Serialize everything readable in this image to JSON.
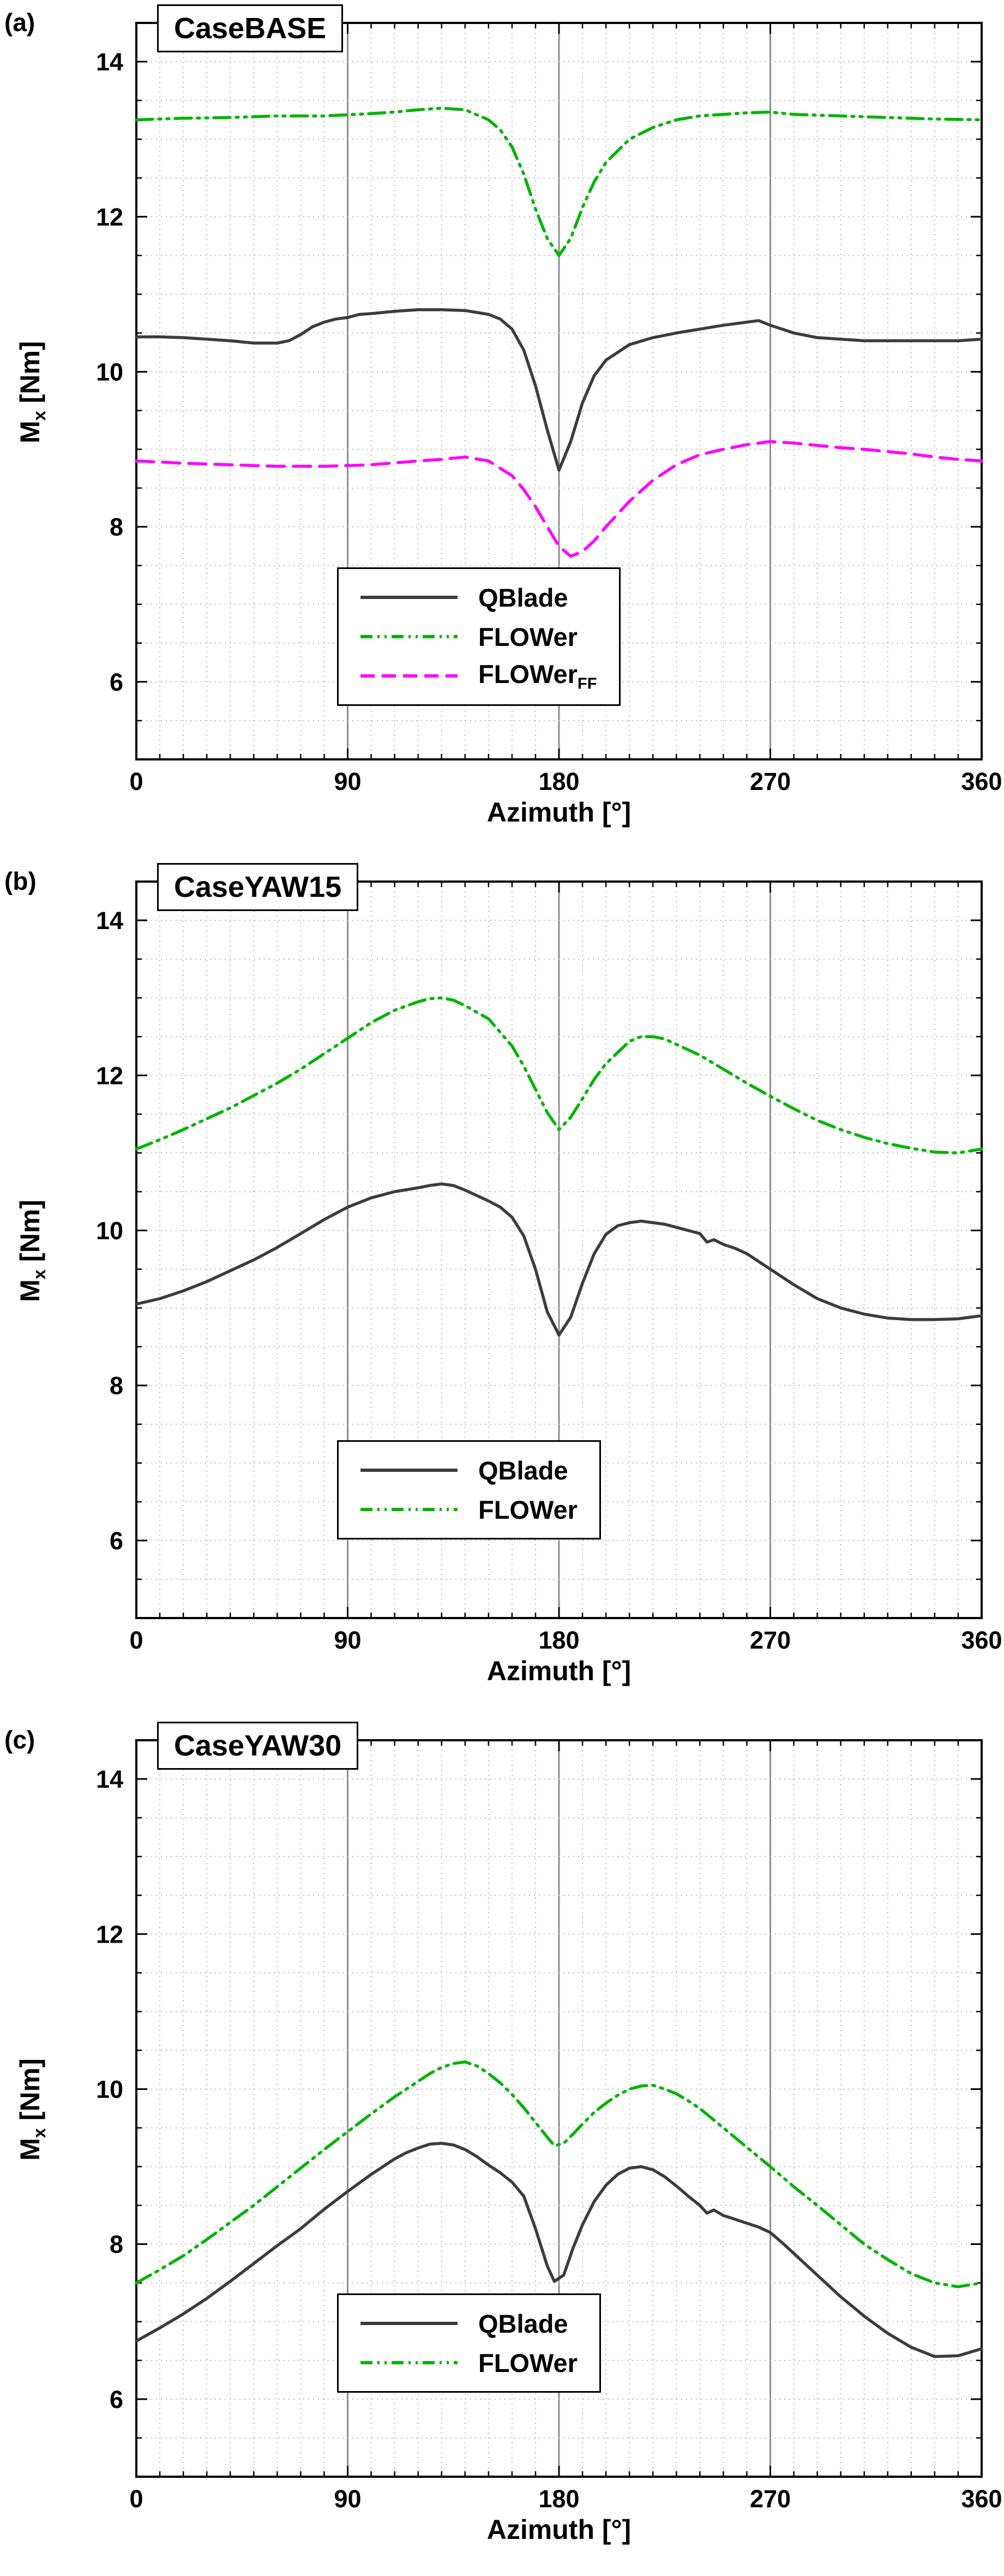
{
  "figure": {
    "xlabel": "Azimuth [°]",
    "ylabel_main": "M",
    "ylabel_sub": "x",
    "ylabel_rest": " [Nm]",
    "panels": [
      {
        "panel_label": "(a)",
        "title": "CaseBASE"
      },
      {
        "panel_label": "(b)",
        "title": "CaseYAW15"
      },
      {
        "panel_label": "(c)",
        "title": "CaseYAW30"
      }
    ],
    "colors": {
      "qblade": "#3c3c3c",
      "flower": "#00b400",
      "flower_ff": "#ff00ff",
      "major_grid": "#8c8c8c",
      "minor_grid": "#bbbbbb",
      "axis": "#000000"
    }
  },
  "chart_data": [
    {
      "type": "line",
      "title": "CaseBASE",
      "xlabel": "Azimuth [°]",
      "ylabel": "Mx [Nm]",
      "xlim": [
        0,
        360
      ],
      "ylim": [
        5,
        14.5
      ],
      "xticks": [
        0,
        90,
        180,
        270,
        360
      ],
      "yticks": [
        6,
        8,
        10,
        12,
        14
      ],
      "x_minor_step": 10,
      "y_minor_step": 0.5,
      "grid": "dotted minor grid, solid gray vertical lines at major x ticks",
      "legend_position": "lower center",
      "series": [
        {
          "name": "QBlade",
          "color": "#3c3c3c",
          "dash": "solid",
          "x": [
            0,
            10,
            20,
            30,
            40,
            50,
            60,
            65,
            70,
            75,
            80,
            85,
            90,
            95,
            100,
            110,
            120,
            130,
            140,
            150,
            155,
            160,
            165,
            170,
            175,
            180,
            185,
            190,
            195,
            200,
            210,
            220,
            230,
            240,
            250,
            260,
            265,
            270,
            280,
            290,
            300,
            310,
            320,
            330,
            340,
            350,
            360
          ],
          "y": [
            10.45,
            10.45,
            10.44,
            10.42,
            10.4,
            10.37,
            10.37,
            10.4,
            10.48,
            10.58,
            10.64,
            10.68,
            10.7,
            10.74,
            10.75,
            10.78,
            10.8,
            10.8,
            10.79,
            10.74,
            10.68,
            10.55,
            10.28,
            9.82,
            9.25,
            8.73,
            9.1,
            9.6,
            9.95,
            10.15,
            10.35,
            10.44,
            10.5,
            10.55,
            10.6,
            10.64,
            10.66,
            10.6,
            10.5,
            10.44,
            10.42,
            10.4,
            10.4,
            10.4,
            10.4,
            10.4,
            10.42
          ]
        },
        {
          "name": "FLOWer",
          "color": "#00b400",
          "dash": "dashdotdot",
          "x": [
            0,
            20,
            40,
            60,
            80,
            100,
            110,
            120,
            130,
            140,
            150,
            155,
            160,
            165,
            170,
            175,
            180,
            185,
            190,
            195,
            200,
            210,
            220,
            230,
            240,
            250,
            260,
            270,
            280,
            300,
            320,
            340,
            360
          ],
          "y": [
            13.25,
            13.27,
            13.28,
            13.3,
            13.3,
            13.33,
            13.35,
            13.38,
            13.4,
            13.38,
            13.25,
            13.12,
            12.9,
            12.55,
            12.1,
            11.72,
            11.5,
            11.72,
            12.12,
            12.45,
            12.7,
            13.0,
            13.15,
            13.25,
            13.3,
            13.32,
            13.34,
            13.35,
            13.32,
            13.3,
            13.28,
            13.26,
            13.25
          ]
        },
        {
          "name": "FLOWer",
          "name_sub": "FF",
          "color": "#ff00ff",
          "dash": "dashed",
          "x": [
            0,
            20,
            40,
            60,
            80,
            100,
            120,
            130,
            140,
            150,
            160,
            165,
            170,
            175,
            180,
            185,
            190,
            195,
            200,
            210,
            220,
            230,
            240,
            250,
            260,
            270,
            280,
            290,
            300,
            310,
            320,
            330,
            340,
            350,
            360
          ],
          "y": [
            8.85,
            8.82,
            8.8,
            8.78,
            8.78,
            8.8,
            8.85,
            8.87,
            8.9,
            8.85,
            8.66,
            8.48,
            8.26,
            8.0,
            7.75,
            7.62,
            7.68,
            7.82,
            8.0,
            8.33,
            8.6,
            8.8,
            8.93,
            9.0,
            9.06,
            9.1,
            9.08,
            9.05,
            9.02,
            9.0,
            8.97,
            8.94,
            8.9,
            8.87,
            8.85
          ]
        }
      ]
    },
    {
      "type": "line",
      "title": "CaseYAW15",
      "xlabel": "Azimuth [°]",
      "ylabel": "Mx [Nm]",
      "xlim": [
        0,
        360
      ],
      "ylim": [
        5,
        14.5
      ],
      "xticks": [
        0,
        90,
        180,
        270,
        360
      ],
      "yticks": [
        6,
        8,
        10,
        12,
        14
      ],
      "x_minor_step": 10,
      "y_minor_step": 0.5,
      "grid": "dotted minor grid, solid gray vertical lines at major x ticks",
      "legend_position": "lower center",
      "series": [
        {
          "name": "QBlade",
          "color": "#3c3c3c",
          "dash": "solid",
          "x": [
            0,
            10,
            20,
            30,
            40,
            50,
            60,
            70,
            80,
            90,
            100,
            110,
            120,
            125,
            130,
            135,
            140,
            145,
            150,
            155,
            160,
            165,
            170,
            175,
            180,
            185,
            190,
            195,
            200,
            205,
            210,
            215,
            220,
            225,
            230,
            235,
            240,
            243,
            246,
            250,
            255,
            260,
            265,
            270,
            275,
            280,
            290,
            300,
            310,
            320,
            330,
            340,
            350,
            360
          ],
          "y": [
            9.05,
            9.12,
            9.22,
            9.34,
            9.48,
            9.62,
            9.78,
            9.96,
            10.14,
            10.3,
            10.42,
            10.5,
            10.55,
            10.58,
            10.6,
            10.58,
            10.52,
            10.45,
            10.38,
            10.3,
            10.17,
            9.93,
            9.5,
            8.95,
            8.65,
            8.88,
            9.32,
            9.7,
            9.95,
            10.06,
            10.1,
            10.12,
            10.1,
            10.08,
            10.04,
            10.0,
            9.96,
            9.85,
            9.88,
            9.82,
            9.77,
            9.7,
            9.6,
            9.5,
            9.4,
            9.3,
            9.12,
            9.0,
            8.92,
            8.87,
            8.85,
            8.85,
            8.86,
            8.9
          ]
        },
        {
          "name": "FLOWer",
          "color": "#00b400",
          "dash": "dashdotdot",
          "x": [
            0,
            10,
            20,
            30,
            40,
            50,
            60,
            70,
            80,
            90,
            100,
            110,
            120,
            125,
            130,
            135,
            140,
            150,
            160,
            165,
            170,
            175,
            180,
            185,
            190,
            195,
            200,
            210,
            215,
            220,
            225,
            230,
            240,
            250,
            260,
            270,
            280,
            290,
            300,
            310,
            320,
            330,
            340,
            350,
            360
          ],
          "y": [
            11.05,
            11.17,
            11.3,
            11.44,
            11.58,
            11.74,
            11.9,
            12.08,
            12.28,
            12.48,
            12.68,
            12.84,
            12.95,
            12.99,
            13.0,
            12.97,
            12.9,
            12.73,
            12.38,
            12.12,
            11.82,
            11.52,
            11.3,
            11.46,
            11.7,
            11.95,
            12.15,
            12.44,
            12.5,
            12.5,
            12.47,
            12.4,
            12.26,
            12.08,
            11.9,
            11.73,
            11.57,
            11.42,
            11.3,
            11.2,
            11.12,
            11.06,
            11.01,
            11.0,
            11.05
          ]
        }
      ]
    },
    {
      "type": "line",
      "title": "CaseYAW30",
      "xlabel": "Azimuth [°]",
      "ylabel": "Mx [Nm]",
      "xlim": [
        0,
        360
      ],
      "ylim": [
        5,
        14.5
      ],
      "xticks": [
        0,
        90,
        180,
        270,
        360
      ],
      "yticks": [
        6,
        8,
        10,
        12,
        14
      ],
      "x_minor_step": 10,
      "y_minor_step": 0.5,
      "grid": "dotted minor grid, solid gray vertical lines at major x ticks",
      "legend_position": "lower center",
      "series": [
        {
          "name": "QBlade",
          "color": "#3c3c3c",
          "dash": "solid",
          "x": [
            0,
            10,
            20,
            30,
            40,
            50,
            60,
            70,
            80,
            90,
            100,
            110,
            115,
            120,
            125,
            130,
            135,
            140,
            145,
            150,
            155,
            160,
            165,
            170,
            175,
            178,
            182,
            186,
            190,
            195,
            200,
            205,
            210,
            215,
            220,
            225,
            230,
            235,
            240,
            243,
            246,
            250,
            255,
            260,
            265,
            270,
            275,
            280,
            290,
            300,
            310,
            320,
            330,
            340,
            350,
            360
          ],
          "y": [
            6.75,
            6.92,
            7.1,
            7.3,
            7.52,
            7.75,
            7.98,
            8.2,
            8.45,
            8.68,
            8.9,
            9.1,
            9.18,
            9.24,
            9.29,
            9.3,
            9.28,
            9.22,
            9.13,
            9.02,
            8.92,
            8.8,
            8.62,
            8.2,
            7.72,
            7.52,
            7.6,
            7.95,
            8.25,
            8.55,
            8.76,
            8.9,
            8.98,
            9.0,
            8.96,
            8.87,
            8.75,
            8.62,
            8.5,
            8.4,
            8.44,
            8.37,
            8.32,
            8.27,
            8.22,
            8.15,
            8.02,
            7.88,
            7.6,
            7.32,
            7.07,
            6.85,
            6.67,
            6.55,
            6.56,
            6.65
          ]
        },
        {
          "name": "FLOWer",
          "color": "#00b400",
          "dash": "dashdotdot",
          "x": [
            0,
            10,
            20,
            30,
            40,
            50,
            60,
            70,
            80,
            90,
            100,
            110,
            120,
            125,
            130,
            135,
            140,
            145,
            150,
            155,
            160,
            165,
            170,
            175,
            178,
            182,
            186,
            190,
            195,
            200,
            205,
            210,
            215,
            220,
            225,
            230,
            235,
            240,
            250,
            260,
            270,
            280,
            290,
            300,
            310,
            320,
            330,
            340,
            350,
            360
          ],
          "y": [
            7.5,
            7.67,
            7.85,
            8.06,
            8.28,
            8.5,
            8.74,
            8.98,
            9.22,
            9.45,
            9.68,
            9.9,
            10.1,
            10.2,
            10.28,
            10.33,
            10.35,
            10.3,
            10.2,
            10.08,
            9.93,
            9.76,
            9.57,
            9.38,
            9.27,
            9.3,
            9.42,
            9.55,
            9.7,
            9.82,
            9.92,
            10.0,
            10.04,
            10.05,
            10.0,
            9.94,
            9.85,
            9.75,
            9.5,
            9.25,
            9.0,
            8.74,
            8.5,
            8.25,
            8.0,
            7.8,
            7.62,
            7.5,
            7.45,
            7.5
          ]
        }
      ]
    }
  ]
}
